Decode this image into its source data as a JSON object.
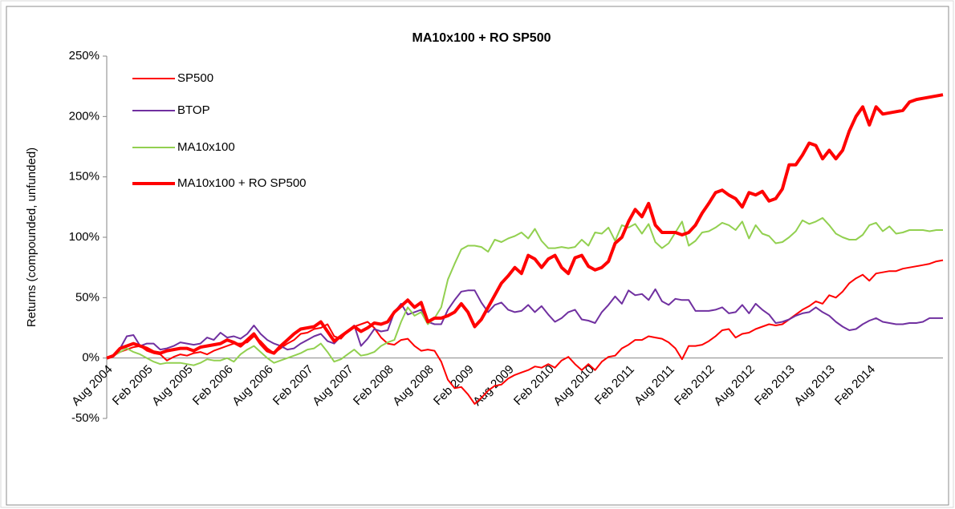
{
  "chart_data": {
    "type": "line",
    "title": "MA10x100 + RO SP500",
    "y_label": "Returns (compounded, unfunded)",
    "categories": [
      "Aug 2004",
      null,
      null,
      null,
      null,
      null,
      "Feb 2005",
      null,
      null,
      null,
      null,
      null,
      "Aug 2005",
      null,
      null,
      null,
      null,
      null,
      "Feb 2006",
      null,
      null,
      null,
      null,
      null,
      "Aug 2006",
      null,
      null,
      null,
      null,
      null,
      "Feb 2007",
      null,
      null,
      null,
      null,
      null,
      "Aug 2007",
      null,
      null,
      null,
      null,
      null,
      "Feb 2008",
      null,
      null,
      null,
      null,
      null,
      "Aug 2008",
      null,
      null,
      null,
      null,
      null,
      "Feb 2009",
      null,
      null,
      null,
      null,
      null,
      "Aug 2009",
      null,
      null,
      null,
      null,
      null,
      "Feb 2010",
      null,
      null,
      null,
      null,
      null,
      "Aug 2010",
      null,
      null,
      null,
      null,
      null,
      "Feb 2011",
      null,
      null,
      null,
      null,
      null,
      "Aug 2011",
      null,
      null,
      null,
      null,
      null,
      "Feb 2012",
      null,
      null,
      null,
      null,
      null,
      "Aug 2012",
      null,
      null,
      null,
      null,
      null,
      "Feb 2013",
      null,
      null,
      null,
      null,
      null,
      "Aug 2013",
      null,
      null,
      null,
      null,
      null,
      "Feb 2014",
      null,
      null,
      null,
      null,
      null,
      null,
      null,
      null,
      null,
      null,
      null
    ],
    "series": [
      {
        "name": "SP500",
        "color": "#ff0000",
        "line_width": 2,
        "values": [
          0,
          2,
          5,
          7,
          9,
          10,
          6,
          4,
          3,
          -2,
          1,
          3,
          2,
          4,
          5,
          3,
          6,
          8,
          10,
          12,
          12,
          13,
          18,
          14,
          8,
          4,
          8,
          12,
          15,
          20,
          21,
          24,
          25,
          28,
          18,
          16,
          22,
          26,
          28,
          30,
          25,
          17,
          12,
          11,
          15,
          16,
          10,
          6,
          7,
          6,
          -3,
          -18,
          -25,
          -24,
          -30,
          -38,
          -33,
          -27,
          -23,
          -22,
          -17,
          -14,
          -12,
          -10,
          -7,
          -8,
          -5,
          -8,
          -2,
          1,
          -5,
          -10,
          -5,
          -10,
          -3,
          1,
          2,
          8,
          11,
          15,
          15,
          18,
          17,
          16,
          13,
          8,
          -1,
          10,
          10,
          11,
          14,
          18,
          23,
          24,
          17,
          20,
          21,
          24,
          26,
          28,
          27,
          28,
          32,
          36,
          40,
          43,
          47,
          45,
          52,
          50,
          55,
          62,
          66,
          69,
          64,
          70,
          71,
          72,
          72,
          74,
          75,
          76,
          77,
          78,
          80,
          81
        ]
      },
      {
        "name": "BTOP",
        "color": "#7030a0",
        "line_width": 2,
        "values": [
          0,
          2,
          8,
          18,
          19,
          10,
          12,
          12,
          7,
          8,
          10,
          13,
          12,
          11,
          12,
          17,
          15,
          21,
          17,
          18,
          16,
          20,
          27,
          20,
          15,
          12,
          10,
          7,
          8,
          12,
          15,
          18,
          20,
          14,
          12,
          18,
          22,
          27,
          10,
          16,
          24,
          22,
          23,
          38,
          45,
          36,
          38,
          40,
          30,
          28,
          28,
          40,
          48,
          55,
          56,
          56,
          46,
          38,
          44,
          46,
          40,
          38,
          39,
          44,
          38,
          43,
          36,
          30,
          33,
          38,
          40,
          32,
          31,
          29,
          38,
          44,
          51,
          45,
          56,
          52,
          53,
          48,
          57,
          47,
          44,
          49,
          48,
          48,
          39,
          39,
          39,
          40,
          42,
          37,
          38,
          44,
          37,
          45,
          40,
          36,
          29,
          30,
          32,
          35,
          37,
          38,
          42,
          38,
          35,
          30,
          26,
          23,
          24,
          28,
          31,
          33,
          30,
          29,
          28,
          28,
          29,
          29,
          30,
          33,
          33,
          33
        ]
      },
      {
        "name": "MA10x100",
        "color": "#92d050",
        "line_width": 2,
        "values": [
          0,
          2,
          5,
          8,
          5,
          3,
          0,
          -3,
          -5,
          -4,
          -4,
          -4,
          -5,
          -6,
          -4,
          -1,
          -2,
          -2,
          0,
          -3,
          3,
          7,
          10,
          5,
          0,
          -4,
          -2,
          0,
          2,
          4,
          7,
          8,
          12,
          5,
          -3,
          -1,
          3,
          7,
          2,
          3,
          5,
          10,
          13,
          15,
          30,
          42,
          35,
          38,
          28,
          33,
          42,
          65,
          78,
          90,
          93,
          93,
          92,
          88,
          98,
          96,
          99,
          101,
          104,
          99,
          107,
          97,
          91,
          91,
          92,
          91,
          92,
          98,
          93,
          104,
          103,
          108,
          97,
          110,
          108,
          111,
          103,
          111,
          96,
          91,
          95,
          104,
          113,
          93,
          97,
          104,
          105,
          108,
          112,
          110,
          106,
          113,
          99,
          110,
          103,
          101,
          95,
          96,
          100,
          105,
          114,
          111,
          113,
          116,
          110,
          103,
          100,
          98,
          98,
          102,
          110,
          112,
          105,
          109,
          103,
          104,
          106,
          106,
          106,
          105,
          106,
          106
        ]
      },
      {
        "name": "MA10x100 + RO SP500",
        "color": "#ff0000",
        "line_width": 4,
        "values": [
          0,
          2,
          8,
          10,
          12,
          10,
          8,
          5,
          4,
          6,
          7,
          8,
          8,
          6,
          9,
          10,
          11,
          12,
          15,
          13,
          10,
          15,
          20,
          12,
          6,
          4,
          10,
          15,
          20,
          24,
          25,
          26,
          30,
          22,
          14,
          18,
          22,
          26,
          22,
          25,
          29,
          28,
          30,
          38,
          43,
          48,
          42,
          46,
          30,
          33,
          33,
          35,
          38,
          45,
          38,
          26,
          32,
          42,
          52,
          62,
          68,
          75,
          70,
          85,
          82,
          75,
          82,
          85,
          75,
          70,
          83,
          85,
          76,
          73,
          75,
          80,
          95,
          100,
          113,
          123,
          117,
          128,
          110,
          104,
          104,
          104,
          102,
          104,
          110,
          120,
          128,
          137,
          139,
          135,
          132,
          125,
          137,
          135,
          138,
          130,
          132,
          140,
          160,
          160,
          168,
          178,
          176,
          165,
          172,
          165,
          172,
          188,
          200,
          208,
          193,
          208,
          202,
          203,
          204,
          205,
          212,
          214,
          215,
          216,
          217,
          218
        ]
      }
    ],
    "ylim": [
      -50,
      250
    ],
    "yticks": [
      {
        "value": -50,
        "label": "-50%"
      },
      {
        "value": 0,
        "label": "0%"
      },
      {
        "value": 50,
        "label": "50%"
      },
      {
        "value": 100,
        "label": "100%"
      },
      {
        "value": 150,
        "label": "150%"
      },
      {
        "value": 200,
        "label": "200%"
      },
      {
        "value": 250,
        "label": "250%"
      }
    ],
    "grid": false,
    "legend": "top-left"
  }
}
